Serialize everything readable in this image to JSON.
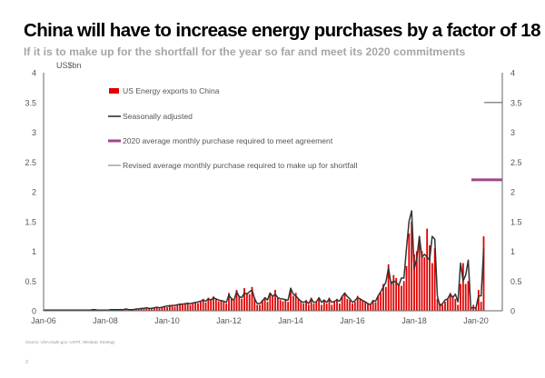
{
  "title": "China will have to increase energy purchases by a factor of 18",
  "subtitle": "If it is to make up for the shortfall for the year so far and meet its 2020 commitments",
  "source": "Source: USA.trade.gov, USTR, Westpac Strategy",
  "page_number": "3",
  "chart_data": {
    "type": "bar",
    "ylabel": "US$bn",
    "ylim": [
      0,
      4
    ],
    "yticks": [
      "0",
      "0.5",
      "1",
      "1.5",
      "2",
      "2.5",
      "3",
      "3.5",
      "4"
    ],
    "xticks": [
      "Jan-06",
      "Jan-08",
      "Jan-10",
      "Jan-12",
      "Jan-14",
      "Jan-16",
      "Jan-18",
      "Jan-20"
    ],
    "x_start": "Jan-06",
    "frequency": "monthly",
    "grid": false,
    "legend_placement": "top-left",
    "series": [
      {
        "name": "US Energy exports to China",
        "type": "bar",
        "color": "#e00000",
        "values": [
          0.01,
          0.01,
          0.02,
          0.01,
          0.01,
          0.01,
          0.01,
          0.01,
          0.02,
          0.01,
          0.01,
          0.01,
          0.01,
          0.01,
          0.01,
          0.02,
          0.01,
          0.01,
          0.01,
          0.02,
          0.02,
          0.01,
          0.01,
          0.01,
          0.01,
          0.01,
          0.02,
          0.02,
          0.02,
          0.01,
          0.02,
          0.02,
          0.03,
          0.02,
          0.02,
          0.02,
          0.02,
          0.03,
          0.04,
          0.03,
          0.05,
          0.04,
          0.03,
          0.05,
          0.06,
          0.04,
          0.05,
          0.07,
          0.06,
          0.1,
          0.08,
          0.07,
          0.09,
          0.12,
          0.1,
          0.11,
          0.14,
          0.1,
          0.12,
          0.15,
          0.13,
          0.16,
          0.2,
          0.14,
          0.22,
          0.18,
          0.24,
          0.2,
          0.16,
          0.18,
          0.15,
          0.12,
          0.3,
          0.22,
          0.18,
          0.35,
          0.25,
          0.2,
          0.38,
          0.3,
          0.28,
          0.4,
          0.22,
          0.1,
          0.1,
          0.18,
          0.22,
          0.15,
          0.3,
          0.25,
          0.35,
          0.22,
          0.18,
          0.16,
          0.2,
          0.15,
          0.35,
          0.25,
          0.3,
          0.2,
          0.15,
          0.12,
          0.18,
          0.1,
          0.22,
          0.12,
          0.14,
          0.2,
          0.1,
          0.18,
          0.12,
          0.22,
          0.1,
          0.15,
          0.2,
          0.12,
          0.25,
          0.28,
          0.2,
          0.18,
          0.12,
          0.15,
          0.25,
          0.2,
          0.18,
          0.15,
          0.12,
          0.1,
          0.18,
          0.14,
          0.25,
          0.3,
          0.45,
          0.4,
          0.78,
          0.5,
          0.6,
          0.55,
          0.45,
          0.42,
          0.5,
          0.75,
          1.3,
          1.5,
          0.95,
          1.0,
          1.25,
          1.0,
          0.9,
          1.38,
          1.1,
          0.8,
          1.05,
          0.2,
          0.12,
          0.1,
          0.15,
          0.2,
          0.3,
          0.25,
          0.2,
          0.1,
          0.45,
          0.8,
          0.45,
          0.5,
          0.05,
          0.1,
          0.05,
          0.35,
          0.15,
          1.25
        ]
      },
      {
        "name": "Seasonally adjusted",
        "type": "line",
        "color": "#333333",
        "values": [
          0.01,
          0.01,
          0.01,
          0.01,
          0.01,
          0.01,
          0.01,
          0.01,
          0.01,
          0.01,
          0.01,
          0.01,
          0.01,
          0.01,
          0.01,
          0.01,
          0.01,
          0.01,
          0.01,
          0.02,
          0.02,
          0.01,
          0.01,
          0.01,
          0.01,
          0.01,
          0.02,
          0.02,
          0.02,
          0.02,
          0.02,
          0.02,
          0.03,
          0.02,
          0.02,
          0.02,
          0.03,
          0.03,
          0.04,
          0.04,
          0.05,
          0.04,
          0.04,
          0.05,
          0.06,
          0.05,
          0.06,
          0.07,
          0.08,
          0.08,
          0.09,
          0.09,
          0.1,
          0.11,
          0.11,
          0.12,
          0.12,
          0.12,
          0.13,
          0.14,
          0.15,
          0.16,
          0.18,
          0.16,
          0.2,
          0.18,
          0.22,
          0.2,
          0.18,
          0.17,
          0.16,
          0.14,
          0.27,
          0.2,
          0.18,
          0.32,
          0.24,
          0.22,
          0.3,
          0.28,
          0.32,
          0.35,
          0.2,
          0.12,
          0.12,
          0.16,
          0.22,
          0.18,
          0.3,
          0.24,
          0.28,
          0.22,
          0.2,
          0.2,
          0.18,
          0.18,
          0.38,
          0.28,
          0.25,
          0.2,
          0.16,
          0.14,
          0.16,
          0.12,
          0.2,
          0.14,
          0.15,
          0.22,
          0.14,
          0.18,
          0.14,
          0.2,
          0.14,
          0.16,
          0.18,
          0.16,
          0.24,
          0.3,
          0.24,
          0.2,
          0.14,
          0.17,
          0.22,
          0.2,
          0.17,
          0.15,
          0.12,
          0.1,
          0.17,
          0.16,
          0.25,
          0.32,
          0.4,
          0.48,
          0.72,
          0.45,
          0.5,
          0.48,
          0.42,
          0.55,
          0.55,
          1.05,
          1.5,
          1.68,
          0.7,
          0.88,
          1.25,
          0.9,
          0.95,
          0.9,
          0.85,
          1.25,
          1.2,
          0.25,
          0.08,
          0.12,
          0.18,
          0.2,
          0.28,
          0.22,
          0.28,
          0.15,
          0.8,
          0.5,
          0.6,
          0.85,
          0.05,
          0.05,
          0.05,
          0.25,
          0.25,
          1.05
        ]
      },
      {
        "name": "2020 average monthly purchase required to meet agreement",
        "type": "hline",
        "color": "#a0468c",
        "value": 2.2
      },
      {
        "name": "Revised average monthly purchase required to make up for shortfall",
        "type": "hline",
        "color": "#8c8c8c",
        "value": 3.5
      }
    ]
  }
}
